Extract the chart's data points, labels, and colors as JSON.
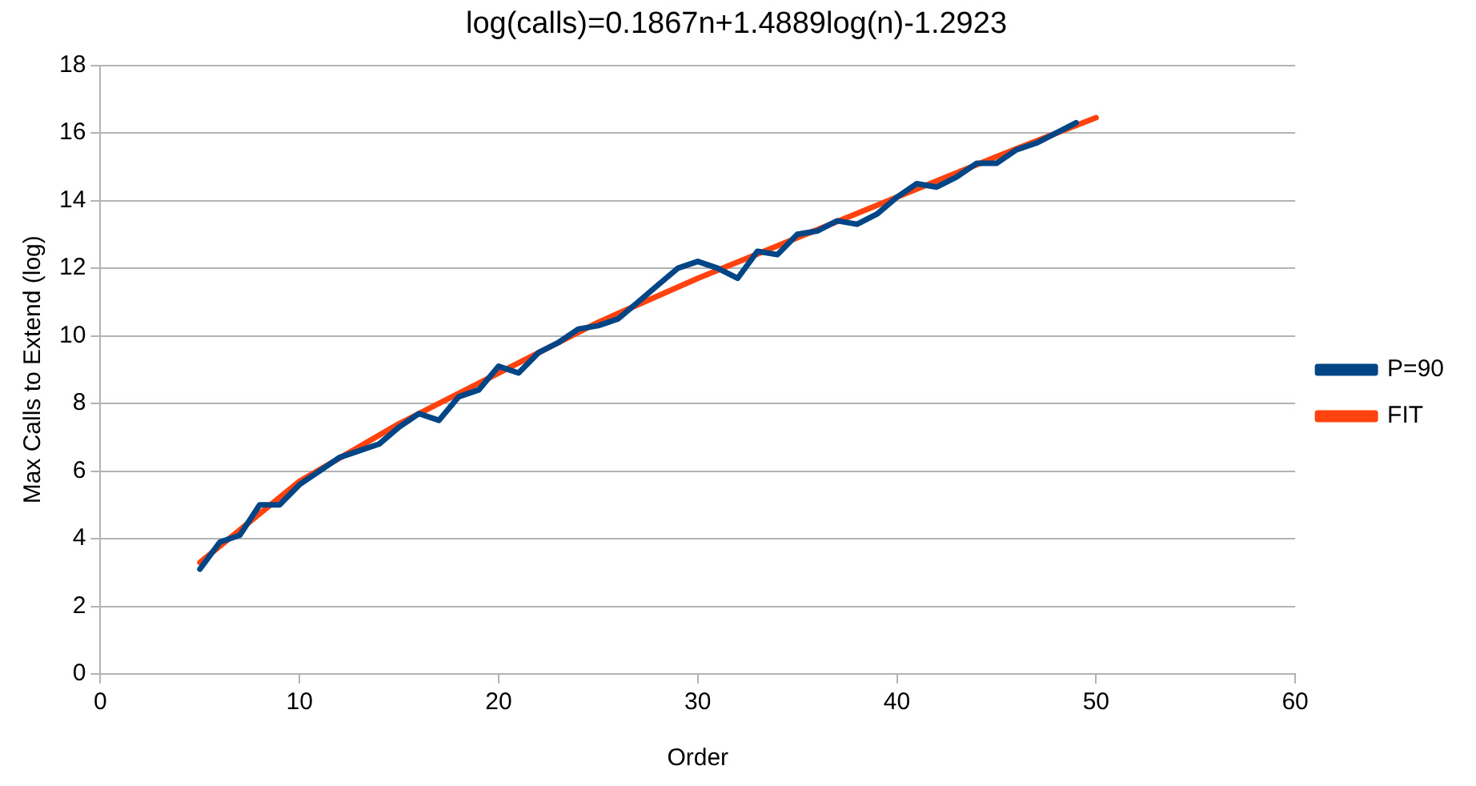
{
  "chart_data": {
    "type": "line",
    "title": "log(calls)=0.1867n+1.4889log(n)-1.2923",
    "xlabel": "Order",
    "ylabel": "Max Calls to Extend (log)",
    "xlim": [
      0,
      60
    ],
    "xticks": [
      0,
      10,
      20,
      30,
      40,
      50,
      60
    ],
    "ylim": [
      0,
      18
    ],
    "yticks": [
      0,
      2,
      4,
      6,
      8,
      10,
      12,
      14,
      16,
      18
    ],
    "grid": "y",
    "legend": "right",
    "marker": "none",
    "series": [
      {
        "name": "P=90",
        "color": "#004586",
        "x": [
          5,
          6,
          7,
          8,
          9,
          10,
          11,
          12,
          13,
          14,
          15,
          16,
          17,
          18,
          19,
          20,
          21,
          22,
          23,
          24,
          25,
          26,
          27,
          28,
          29,
          30,
          31,
          32,
          33,
          34,
          35,
          36,
          37,
          38,
          39,
          40,
          41,
          42,
          43,
          44,
          45,
          46,
          47,
          48,
          49
        ],
        "values": [
          3.1,
          3.9,
          4.1,
          5.0,
          5.0,
          5.6,
          6.0,
          6.4,
          6.6,
          6.8,
          7.3,
          7.7,
          7.5,
          8.2,
          8.4,
          9.1,
          8.9,
          9.5,
          9.8,
          10.2,
          10.3,
          10.5,
          11.0,
          11.5,
          12.0,
          12.2,
          12.0,
          11.7,
          12.5,
          12.4,
          13.0,
          13.1,
          13.4,
          13.3,
          13.6,
          14.1,
          14.5,
          14.4,
          14.7,
          15.1,
          15.1,
          15.5,
          15.7,
          16.0,
          16.3
        ]
      },
      {
        "name": "FIT",
        "color": "#ff420e",
        "x": [
          5,
          10,
          15,
          20,
          25,
          30,
          35,
          40,
          45,
          50
        ],
        "values": [
          3.3,
          5.7,
          7.4,
          8.9,
          10.4,
          11.7,
          12.9,
          14.1,
          15.3,
          16.45
        ]
      }
    ]
  }
}
